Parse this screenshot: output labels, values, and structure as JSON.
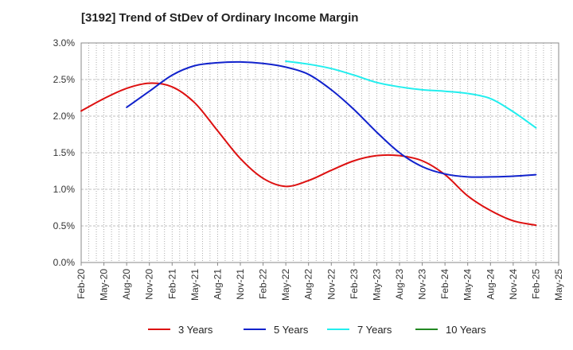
{
  "chart_data": {
    "type": "line",
    "title": "[3192]  Trend of StDev of Ordinary Income Margin",
    "xlabel": "",
    "ylabel": "",
    "x": [
      "Feb-20",
      "May-20",
      "Aug-20",
      "Nov-20",
      "Feb-21",
      "May-21",
      "Aug-21",
      "Nov-21",
      "Feb-22",
      "May-22",
      "Aug-22",
      "Nov-22",
      "Feb-23",
      "May-23",
      "Aug-23",
      "Nov-23",
      "Feb-24",
      "May-24",
      "Aug-24",
      "Nov-24",
      "Feb-25",
      "May-25"
    ],
    "ylim": [
      0,
      3.0
    ],
    "yticks": [
      0.0,
      0.5,
      1.0,
      1.5,
      2.0,
      2.5,
      3.0
    ],
    "ytick_labels": [
      "0.0%",
      "0.5%",
      "1.0%",
      "1.5%",
      "2.0%",
      "2.5%",
      "3.0%"
    ],
    "grid": true,
    "legend_position": "bottom",
    "series": [
      {
        "name": "3 Years",
        "color": "#dd1111",
        "values": [
          2.07,
          2.24,
          2.38,
          2.45,
          2.4,
          2.18,
          1.8,
          1.42,
          1.15,
          1.04,
          1.12,
          1.26,
          1.39,
          1.46,
          1.46,
          1.39,
          1.2,
          0.91,
          0.71,
          0.57,
          0.51,
          null
        ]
      },
      {
        "name": "5 Years",
        "color": "#1122cc",
        "values": [
          null,
          null,
          2.12,
          2.34,
          2.56,
          2.69,
          2.73,
          2.74,
          2.72,
          2.67,
          2.57,
          2.36,
          2.09,
          1.78,
          1.5,
          1.31,
          1.21,
          1.17,
          1.17,
          1.18,
          1.2,
          null
        ]
      },
      {
        "name": "7 Years",
        "color": "#22eeee",
        "values": [
          null,
          null,
          null,
          null,
          null,
          null,
          null,
          null,
          null,
          2.75,
          2.71,
          2.65,
          2.56,
          2.46,
          2.4,
          2.36,
          2.34,
          2.31,
          2.24,
          2.06,
          1.84,
          null
        ]
      },
      {
        "name": "10 Years",
        "color": "#228822",
        "values": [
          null,
          null,
          null,
          null,
          null,
          null,
          null,
          null,
          null,
          null,
          null,
          null,
          null,
          null,
          null,
          null,
          null,
          null,
          null,
          null,
          null,
          null
        ]
      }
    ]
  }
}
